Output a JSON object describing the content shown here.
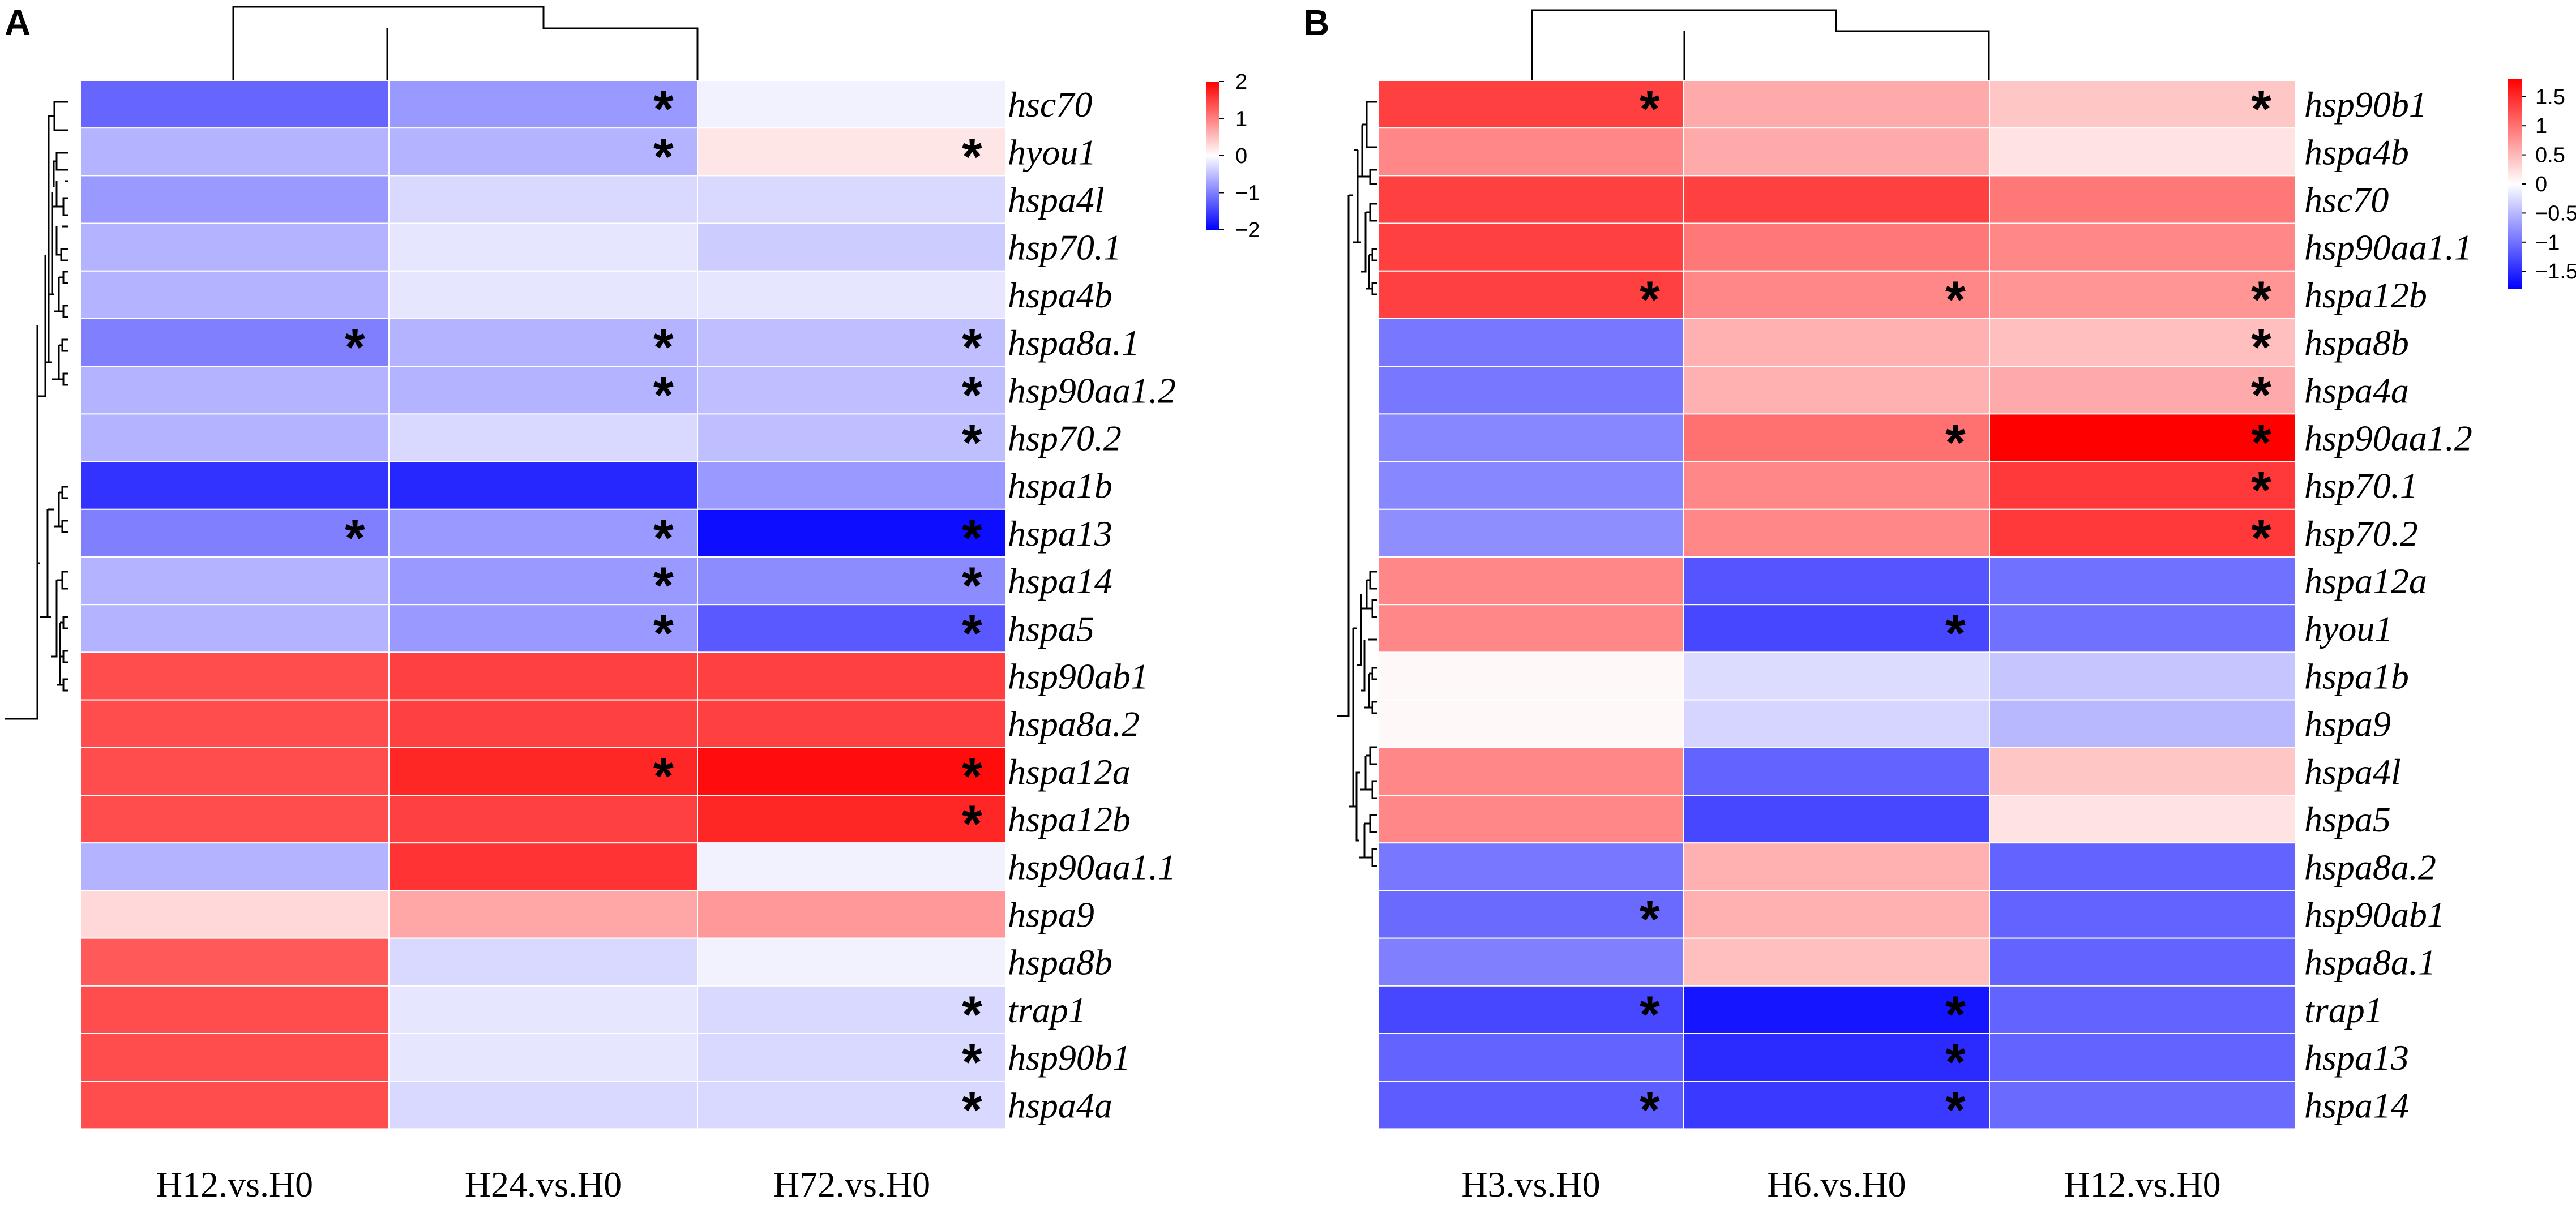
{
  "chart_data": [
    {
      "type": "heatmap",
      "panel": "A",
      "columns": [
        "H12.vs.H0",
        "H24.vs.H0",
        "H72.vs.H0"
      ],
      "rows": [
        "hsc70",
        "hyou1",
        "hspa4l",
        "hsp70.1",
        "hspa4b",
        "hspa8a.1",
        "hsp90aa1.2",
        "hsp70.2",
        "hspa1b",
        "hspa13",
        "hspa14",
        "hspa5",
        "hsp90ab1",
        "hspa8a.2",
        "hspa12a",
        "hspa12b",
        "hsp90aa1.1",
        "hspa9",
        "hspa8b",
        "trap1",
        "hsp90b1",
        "hspa4a"
      ],
      "values": [
        [
          -1.2,
          -0.8,
          -0.1
        ],
        [
          -0.6,
          -0.6,
          0.2
        ],
        [
          -0.8,
          -0.3,
          -0.3
        ],
        [
          -0.6,
          -0.2,
          -0.4
        ],
        [
          -0.6,
          -0.2,
          -0.2
        ],
        [
          -1.0,
          -0.6,
          -0.5
        ],
        [
          -0.6,
          -0.6,
          -0.5
        ],
        [
          -0.6,
          -0.3,
          -0.5
        ],
        [
          -1.6,
          -1.7,
          -0.8
        ],
        [
          -1.0,
          -0.8,
          -1.9
        ],
        [
          -0.6,
          -0.8,
          -0.9
        ],
        [
          -0.6,
          -0.8,
          -1.3
        ],
        [
          1.4,
          1.5,
          1.5
        ],
        [
          1.4,
          1.5,
          1.5
        ],
        [
          1.4,
          1.7,
          1.9
        ],
        [
          1.4,
          1.5,
          1.7
        ],
        [
          -0.6,
          1.6,
          -0.1
        ],
        [
          0.3,
          0.7,
          0.8
        ],
        [
          1.3,
          -0.3,
          -0.1
        ],
        [
          1.4,
          -0.2,
          -0.3
        ],
        [
          1.4,
          -0.2,
          -0.3
        ],
        [
          1.4,
          -0.3,
          -0.3
        ]
      ],
      "significant": [
        [
          false,
          true,
          false
        ],
        [
          false,
          true,
          true
        ],
        [
          false,
          false,
          false
        ],
        [
          false,
          false,
          false
        ],
        [
          false,
          false,
          false
        ],
        [
          true,
          true,
          true
        ],
        [
          false,
          true,
          true
        ],
        [
          false,
          false,
          true
        ],
        [
          false,
          false,
          false
        ],
        [
          true,
          true,
          true
        ],
        [
          false,
          true,
          true
        ],
        [
          false,
          true,
          true
        ],
        [
          false,
          false,
          false
        ],
        [
          false,
          false,
          false
        ],
        [
          false,
          true,
          true
        ],
        [
          false,
          false,
          true
        ],
        [
          false,
          false,
          false
        ],
        [
          false,
          false,
          false
        ],
        [
          false,
          false,
          false
        ],
        [
          false,
          false,
          true
        ],
        [
          false,
          false,
          true
        ],
        [
          false,
          false,
          true
        ]
      ],
      "significance_marker": "*",
      "color_scale": {
        "min": -2,
        "max": 2,
        "low_color": "#0000ff",
        "mid_color": "#ffffff",
        "high_color": "#ff0000"
      },
      "legend_ticks": [
        "2",
        "1",
        "0",
        "−1",
        "−2"
      ],
      "legend_tick_values": [
        2,
        1,
        0,
        -1,
        -2
      ]
    },
    {
      "type": "heatmap",
      "panel": "B",
      "columns": [
        "H3.vs.H0",
        "H6.vs.H0",
        "H12.vs.H0"
      ],
      "rows": [
        "hsp90b1",
        "hspa4b",
        "hsc70",
        "hsp90aa1.1",
        "hspa12b",
        "hspa8b",
        "hspa4a",
        "hsp90aa1.2",
        "hsp70.1",
        "hsp70.2",
        "hspa12a",
        "hyou1",
        "hspa1b",
        "hspa9",
        "hspa4l",
        "hspa5",
        "hspa8a.2",
        "hsp90ab1",
        "hspa8a.1",
        "trap1",
        "hspa13",
        "hspa14"
      ],
      "values": [
        [
          1.35,
          0.6,
          0.4
        ],
        [
          0.85,
          0.6,
          0.2
        ],
        [
          1.35,
          1.35,
          0.95
        ],
        [
          1.35,
          0.95,
          0.85
        ],
        [
          1.35,
          0.85,
          0.75
        ],
        [
          -0.95,
          0.55,
          0.45
        ],
        [
          -0.95,
          0.55,
          0.6
        ],
        [
          -0.85,
          1.0,
          1.8
        ],
        [
          -0.85,
          0.85,
          1.4
        ],
        [
          -0.8,
          0.85,
          1.4
        ],
        [
          0.85,
          -1.2,
          -1.0
        ],
        [
          0.85,
          -1.3,
          -1.0
        ],
        [
          0.05,
          -0.25,
          -0.4
        ],
        [
          0.05,
          -0.3,
          -0.5
        ],
        [
          0.85,
          -1.1,
          0.4
        ],
        [
          0.85,
          -1.3,
          0.2
        ],
        [
          -0.95,
          0.55,
          -1.1
        ],
        [
          -1.05,
          0.55,
          -1.1
        ],
        [
          -0.9,
          0.45,
          -1.1
        ],
        [
          -1.3,
          -1.65,
          -1.1
        ],
        [
          -1.1,
          -1.5,
          -1.1
        ],
        [
          -1.15,
          -1.4,
          -1.05
        ]
      ],
      "significant": [
        [
          true,
          false,
          true
        ],
        [
          false,
          false,
          false
        ],
        [
          false,
          false,
          false
        ],
        [
          false,
          false,
          false
        ],
        [
          true,
          true,
          true
        ],
        [
          false,
          false,
          true
        ],
        [
          false,
          false,
          true
        ],
        [
          false,
          true,
          true
        ],
        [
          false,
          false,
          true
        ],
        [
          false,
          false,
          true
        ],
        [
          false,
          false,
          false
        ],
        [
          false,
          true,
          false
        ],
        [
          false,
          false,
          false
        ],
        [
          false,
          false,
          false
        ],
        [
          false,
          false,
          false
        ],
        [
          false,
          false,
          false
        ],
        [
          false,
          false,
          false
        ],
        [
          true,
          false,
          false
        ],
        [
          false,
          false,
          false
        ],
        [
          true,
          true,
          false
        ],
        [
          false,
          true,
          false
        ],
        [
          true,
          true,
          false
        ]
      ],
      "significance_marker": "*",
      "color_scale": {
        "min": -1.8,
        "max": 1.8,
        "low_color": "#0000ff",
        "mid_color": "#ffffff",
        "high_color": "#ff0000"
      },
      "legend_ticks": [
        "1.5",
        "1",
        "0.5",
        "0",
        "−0.5",
        "−1",
        "−1.5"
      ],
      "legend_tick_values": [
        1.5,
        1,
        0.5,
        0,
        -0.5,
        -1,
        -1.5
      ]
    }
  ]
}
